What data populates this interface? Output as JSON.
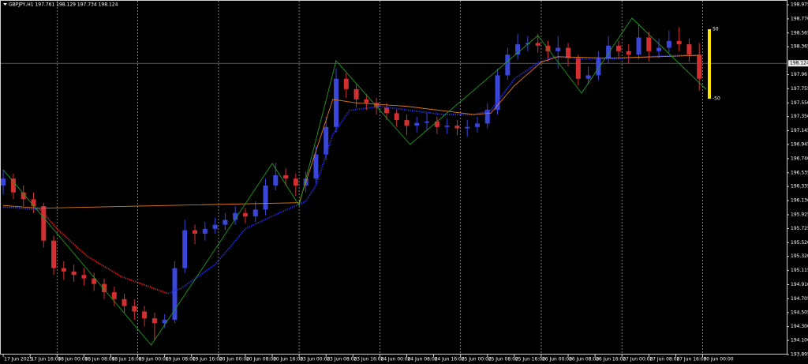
{
  "chart_data": {
    "type": "candlestick",
    "title": "GBPJPY,H1  197.761 198.129 197.734 198.124",
    "xlim": [
      -0.5,
      233
    ],
    "ylim": [
      193.895,
      198.975
    ],
    "xticks": [
      {
        "value": 0,
        "label": "17 Jun 2025"
      },
      {
        "value": 8,
        "label": "17 Jun 16:00"
      },
      {
        "value": 16,
        "label": "18 Jun 00:00"
      },
      {
        "value": 24,
        "label": "18 Jun 08:00"
      },
      {
        "value": 32,
        "label": "18 Jun 16:00"
      },
      {
        "value": 40,
        "label": "19 Jun 00:00"
      },
      {
        "value": 48,
        "label": "19 Jun 08:00"
      },
      {
        "value": 56,
        "label": "19 Jun 16:00"
      },
      {
        "value": 64,
        "label": "20 Jun 00:00"
      },
      {
        "value": 72,
        "label": "20 Jun 08:00"
      },
      {
        "value": 80,
        "label": "20 Jun 16:00"
      },
      {
        "value": 88,
        "label": "23 Jun 00:00"
      },
      {
        "value": 96,
        "label": "23 Jun 08:00"
      },
      {
        "value": 104,
        "label": "23 Jun 16:00"
      },
      {
        "value": 112,
        "label": "24 Jun 00:00"
      },
      {
        "value": 120,
        "label": "24 Jun 08:00"
      },
      {
        "value": 128,
        "label": "24 Jun 16:00"
      },
      {
        "value": 136,
        "label": "25 Jun 00:00"
      },
      {
        "value": 144,
        "label": "25 Jun 08:00"
      },
      {
        "value": 152,
        "label": "25 Jun 16:00"
      },
      {
        "value": 160,
        "label": "26 Jun 00:00"
      },
      {
        "value": 168,
        "label": "26 Jun 08:00"
      },
      {
        "value": 176,
        "label": "26 Jun 16:00"
      },
      {
        "value": 184,
        "label": "27 Jun 00:00"
      },
      {
        "value": 192,
        "label": "27 Jun 08:00"
      },
      {
        "value": 200,
        "label": "27 Jun 16:00"
      },
      {
        "value": 208,
        "label": "30 Jun 00:00"
      }
    ],
    "grid_x": [
      16,
      40,
      64,
      88,
      112,
      136,
      160,
      184,
      208
    ],
    "yticks": [
      198.975,
      {
        "value": 198.77,
        "label": "198.770"
      },
      198.565,
      198.365,
      197.96,
      197.755,
      {
        "value": 197.55,
        "label": "197.550"
      },
      {
        "value": 197.35,
        "label": "197.350"
      },
      197.145,
      196.945,
      {
        "value": 196.74,
        "label": "196.740"
      },
      196.535,
      196.335,
      {
        "value": 196.13,
        "label": "196.130"
      },
      195.925,
      195.725,
      {
        "value": 195.52,
        "label": "195.520"
      },
      {
        "value": 195.32,
        "label": "195.320"
      },
      195.115,
      {
        "value": 194.91,
        "label": "194.910"
      },
      194.705,
      194.505,
      {
        "value": 194.3,
        "label": "194.300"
      },
      {
        "value": 194.1,
        "label": "194.100"
      },
      193.895
    ],
    "current_price": 198.124,
    "up_color": "#3a46d8",
    "down_color": "#d23030",
    "candles": {
      "x": [
        0,
        3,
        6,
        9,
        12,
        15,
        18,
        21,
        24,
        27,
        30,
        33,
        36,
        39,
        42,
        45,
        48,
        51,
        54,
        57,
        60,
        63,
        66,
        69,
        72,
        75,
        78,
        81,
        84,
        87,
        90,
        93,
        96,
        99,
        102,
        105,
        108,
        111,
        114,
        117,
        120,
        123,
        126,
        129,
        132,
        135,
        138,
        141,
        144,
        147,
        150,
        153,
        156,
        159,
        162,
        165,
        168,
        171,
        174,
        177,
        180,
        183,
        186,
        189,
        192,
        195,
        198,
        201,
        204,
        207
      ],
      "open": [
        196.35,
        196.45,
        196.25,
        196.15,
        196.05,
        195.55,
        195.15,
        195.1,
        195.05,
        195.0,
        194.92,
        194.8,
        194.7,
        194.6,
        194.52,
        194.42,
        194.35,
        194.4,
        195.15,
        195.7,
        195.65,
        195.72,
        195.78,
        195.85,
        195.95,
        195.9,
        196.0,
        196.35,
        196.5,
        196.45,
        196.35,
        196.45,
        196.8,
        197.2,
        197.9,
        197.75,
        197.6,
        197.55,
        197.48,
        197.4,
        197.3,
        197.22,
        197.26,
        197.28,
        197.2,
        197.22,
        197.18,
        197.2,
        197.25,
        197.45,
        197.95,
        198.25,
        198.4,
        198.42,
        198.38,
        198.3,
        198.35,
        198.2,
        197.9,
        197.95,
        198.2,
        198.38,
        198.3,
        198.25,
        198.5,
        198.3,
        198.35,
        198.45,
        198.4,
        198.25
      ],
      "high": [
        196.58,
        196.52,
        196.35,
        196.25,
        196.1,
        195.62,
        195.25,
        195.2,
        195.15,
        195.08,
        195.0,
        194.88,
        194.78,
        194.7,
        194.6,
        194.5,
        194.48,
        195.25,
        195.85,
        195.78,
        195.82,
        195.88,
        195.95,
        196.05,
        196.02,
        196.12,
        196.45,
        196.68,
        196.6,
        196.52,
        196.55,
        196.92,
        197.35,
        198.05,
        197.98,
        197.82,
        197.68,
        197.62,
        197.55,
        197.45,
        197.38,
        197.35,
        197.4,
        197.35,
        197.32,
        197.3,
        197.3,
        197.35,
        197.55,
        198.05,
        198.35,
        198.55,
        198.52,
        198.55,
        198.45,
        198.52,
        198.42,
        198.25,
        198.08,
        198.3,
        198.52,
        198.45,
        198.4,
        198.7,
        198.58,
        198.48,
        198.6,
        198.65,
        198.48,
        198.42
      ],
      "low": [
        196.22,
        196.15,
        196.05,
        195.95,
        195.45,
        195.05,
        194.98,
        194.95,
        194.9,
        194.82,
        194.7,
        194.6,
        194.5,
        194.4,
        194.3,
        194.1,
        194.28,
        194.35,
        195.08,
        195.5,
        195.55,
        195.65,
        195.7,
        195.78,
        195.8,
        195.82,
        195.92,
        196.28,
        196.35,
        196.2,
        196.25,
        196.38,
        196.72,
        197.12,
        197.62,
        197.48,
        197.45,
        197.38,
        197.3,
        197.2,
        197.08,
        197.12,
        197.15,
        197.1,
        197.1,
        197.08,
        197.06,
        197.12,
        197.18,
        197.38,
        197.88,
        198.18,
        198.3,
        198.28,
        198.15,
        198.05,
        198.08,
        197.8,
        197.82,
        197.88,
        198.12,
        198.18,
        198.12,
        198.18,
        198.15,
        198.2,
        198.28,
        198.3,
        198.15,
        197.73
      ],
      "close": [
        196.45,
        196.25,
        196.15,
        196.05,
        195.55,
        195.15,
        195.1,
        195.05,
        195.0,
        194.92,
        194.8,
        194.7,
        194.6,
        194.52,
        194.42,
        194.35,
        194.4,
        195.15,
        195.7,
        195.65,
        195.72,
        195.78,
        195.85,
        195.95,
        195.9,
        196.0,
        196.35,
        196.5,
        196.45,
        196.35,
        196.45,
        196.8,
        197.2,
        197.9,
        197.75,
        197.6,
        197.55,
        197.48,
        197.4,
        197.3,
        197.22,
        197.26,
        197.28,
        197.2,
        197.22,
        197.18,
        197.2,
        197.25,
        197.45,
        197.95,
        198.25,
        198.4,
        198.42,
        198.38,
        198.3,
        198.35,
        198.2,
        197.9,
        197.95,
        198.2,
        198.38,
        198.3,
        198.25,
        198.5,
        198.3,
        198.35,
        198.45,
        198.4,
        198.25,
        197.9
      ]
    },
    "lines": [
      {
        "color": "#3a46d8",
        "style": "dotted",
        "x": [
          0,
          11
        ],
        "values": [
          196.04,
          196.0
        ]
      },
      {
        "color": "#e02020",
        "style": "dotted",
        "x": [
          11,
          16,
          25,
          35,
          49
        ],
        "values": [
          196.0,
          195.72,
          195.32,
          195.03,
          194.78
        ]
      },
      {
        "color": "#2a2ee8",
        "style": "dotted",
        "x": [
          49,
          53,
          63,
          72,
          82,
          90,
          93,
          98,
          103,
          112,
          121,
          131,
          140,
          145,
          152,
          159,
          164,
          173,
          182,
          192,
          201,
          207
        ],
        "values": [
          194.78,
          194.86,
          195.2,
          195.72,
          195.95,
          196.12,
          196.35,
          197.09,
          197.44,
          197.5,
          197.44,
          197.38,
          197.38,
          197.44,
          197.9,
          198.13,
          198.22,
          198.19,
          198.19,
          198.22,
          198.24,
          198.24
        ]
      },
      {
        "color": "#e07a10",
        "style": "solid",
        "x": [
          0,
          11,
          88,
          98,
          105,
          120,
          140,
          145,
          152,
          160,
          165,
          180,
          195,
          207
        ],
        "values": [
          196.06,
          196.02,
          196.1,
          197.6,
          197.55,
          197.5,
          197.38,
          197.4,
          197.8,
          198.14,
          198.22,
          198.2,
          198.22,
          198.24
        ]
      },
      {
        "color": "#1f9a1f",
        "style": "solid",
        "x": [
          0,
          44,
          80,
          88,
          99,
          121,
          159,
          172,
          187,
          209
        ],
        "values": [
          196.578,
          194.032,
          196.67,
          196.062,
          198.161,
          196.945,
          198.528,
          197.691,
          198.78,
          197.748
        ]
      }
    ],
    "range_bar": {
      "x": 210,
      "top": 198.62,
      "bottom": 197.61,
      "color": "#ffe800",
      "top_label": "50",
      "bottom_label": "-50"
    }
  }
}
